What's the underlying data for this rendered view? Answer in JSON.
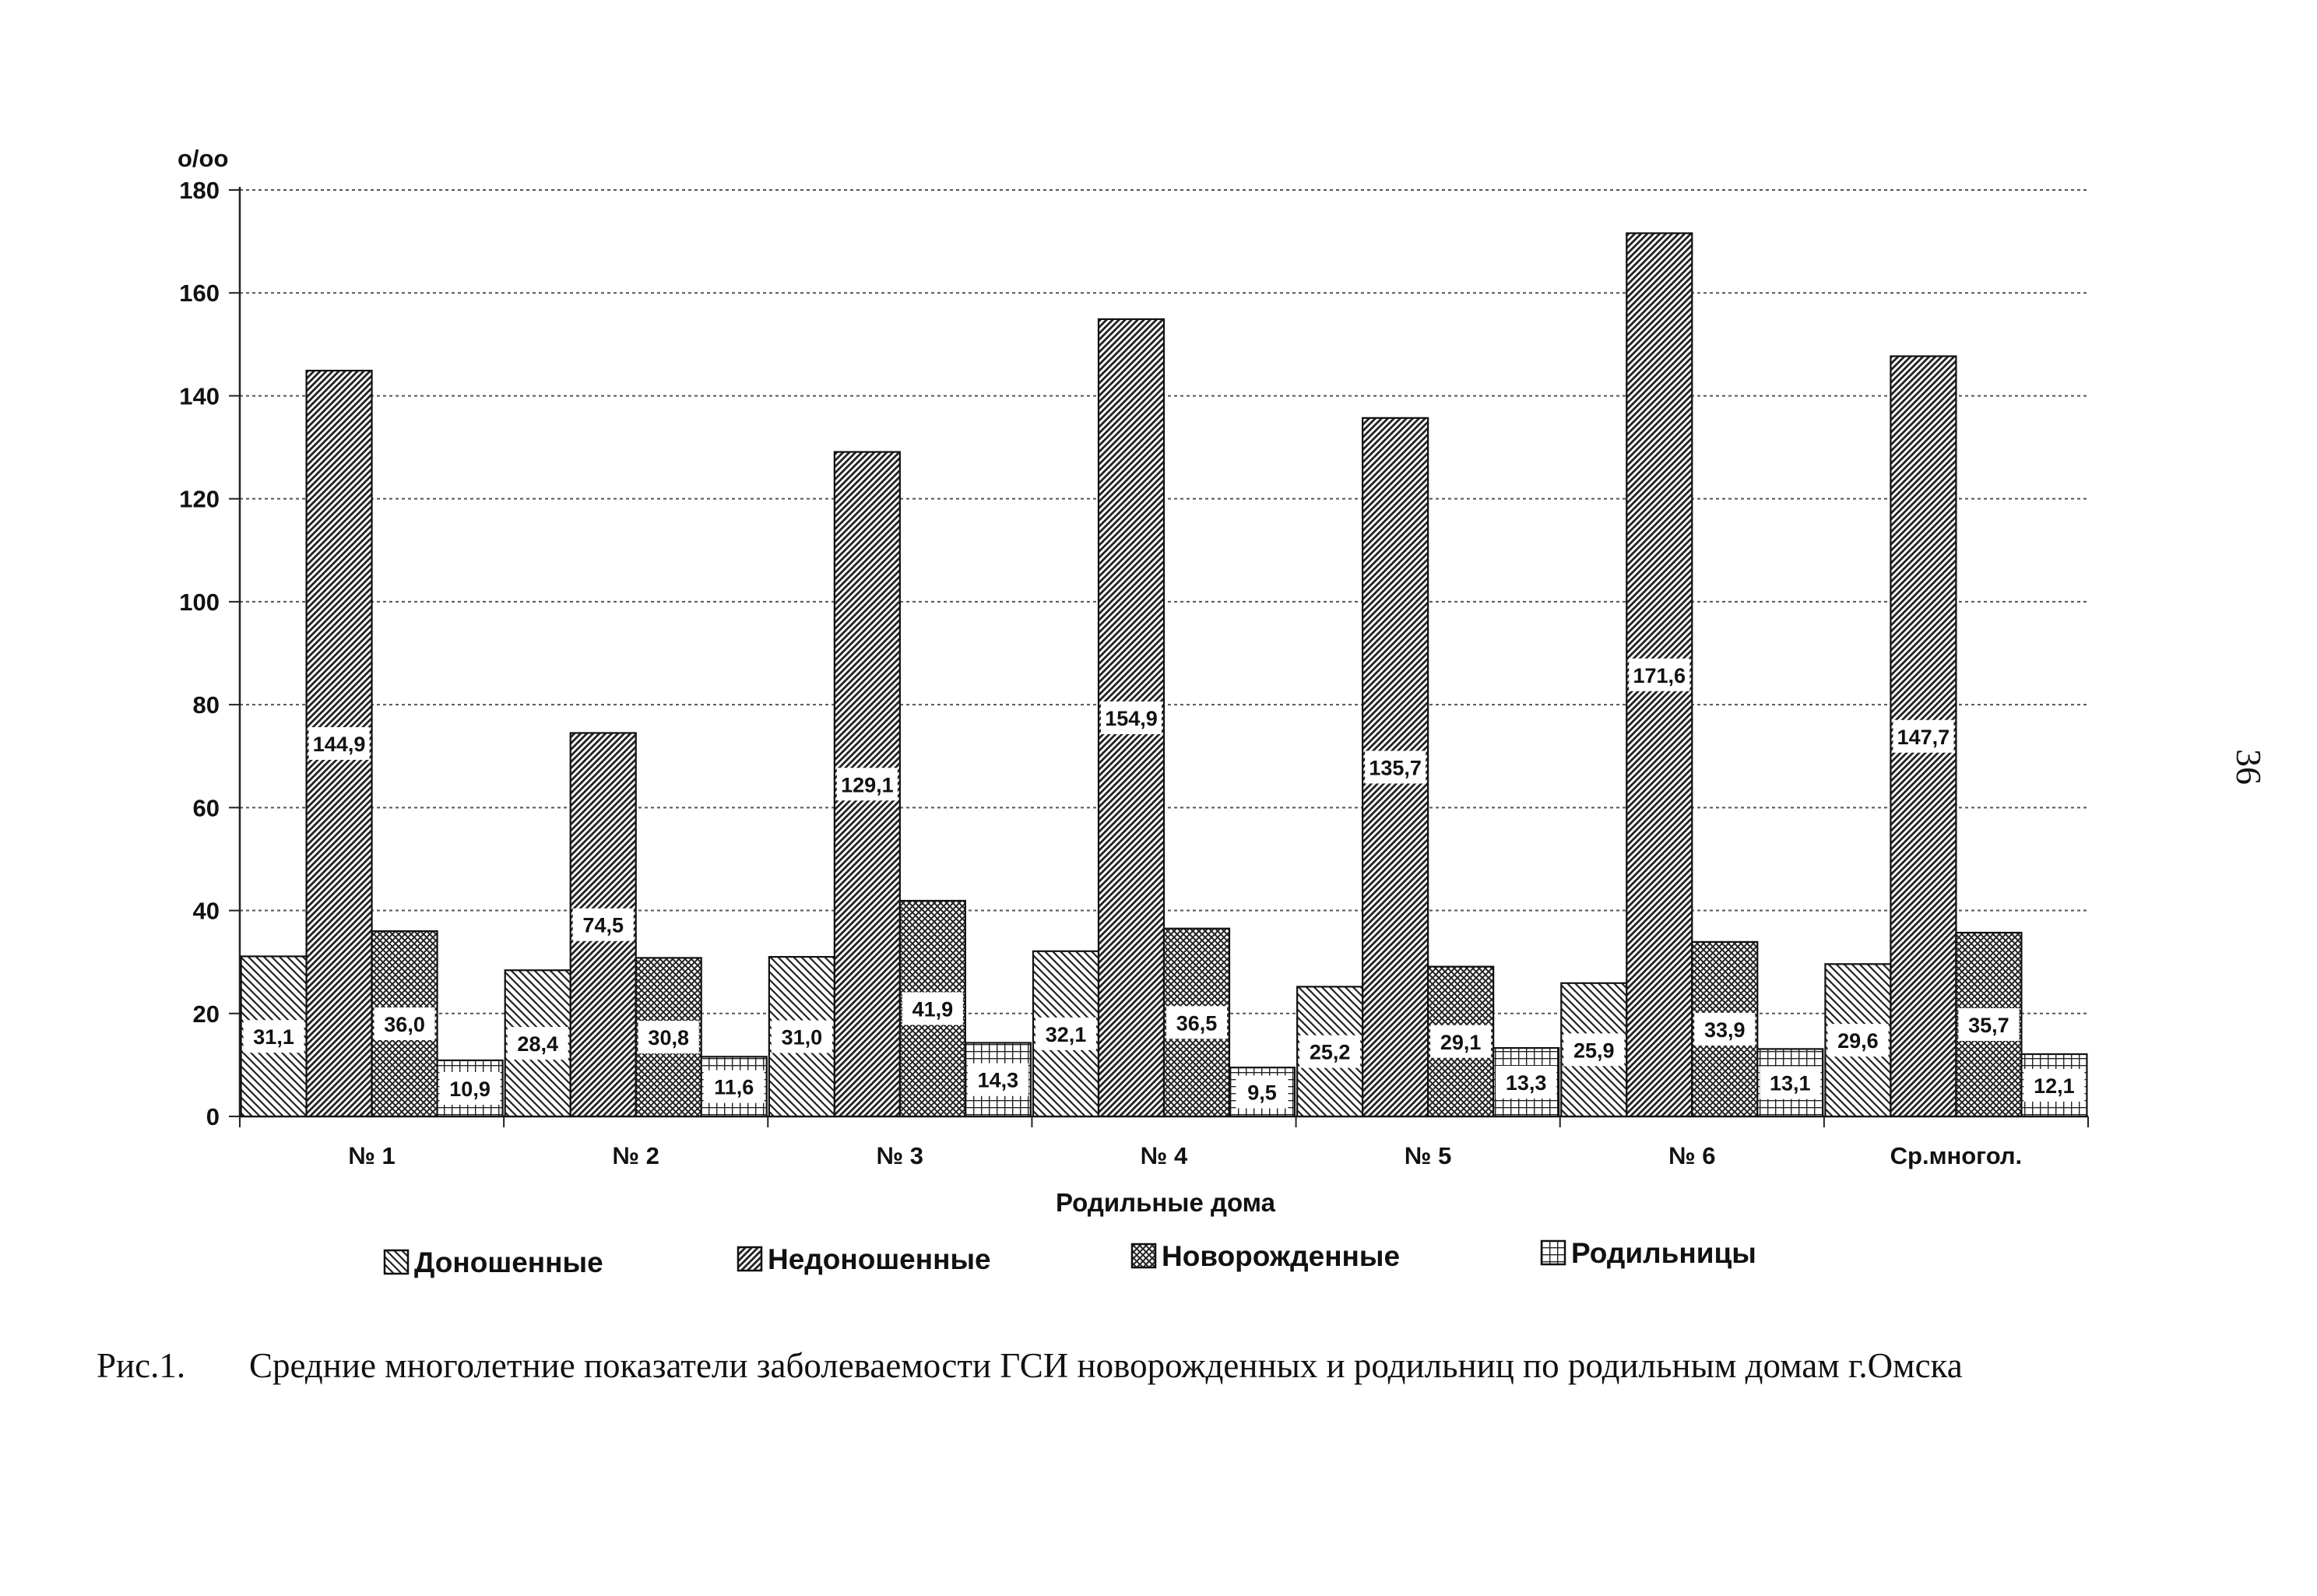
{
  "chart_data": {
    "type": "bar",
    "title": "",
    "ylabel": "о/оо",
    "xlabel": "Родильные дома",
    "ylim": [
      0,
      180
    ],
    "yticks": [
      0,
      20,
      40,
      60,
      80,
      100,
      120,
      140,
      160,
      180
    ],
    "grid": true,
    "legend_position": "bottom",
    "categories": [
      "№ 1",
      "№ 2",
      "№ 3",
      "№ 4",
      "№ 5",
      "№ 6",
      "Ср.многол."
    ],
    "series": [
      {
        "name": "Доношенные",
        "pattern": "diagonal-back",
        "values": [
          31.1,
          28.4,
          31.0,
          32.1,
          25.2,
          25.9,
          29.6
        ],
        "labels": [
          "31,1",
          "28,4",
          "31,0",
          "32,1",
          "25,2",
          "25,9",
          "29,6"
        ]
      },
      {
        "name": "Недоношенные",
        "pattern": "diagonal-dense",
        "values": [
          144.9,
          74.5,
          129.1,
          154.9,
          135.7,
          171.6,
          147.7
        ],
        "labels": [
          "144,9",
          "74,5",
          "129,1",
          "154,9",
          "135,7",
          "171,6",
          "147,7"
        ]
      },
      {
        "name": "Новорожденные",
        "pattern": "crosshatch",
        "values": [
          36.0,
          30.8,
          41.9,
          36.5,
          29.1,
          33.9,
          35.7
        ],
        "labels": [
          "36,0",
          "30,8",
          "41,9",
          "36,5",
          "29,1",
          "33,9",
          "35,7"
        ]
      },
      {
        "name": "Родильницы",
        "pattern": "grid",
        "values": [
          10.9,
          11.6,
          14.3,
          9.5,
          13.3,
          13.1,
          12.1
        ],
        "labels": [
          "10,9",
          "11,6",
          "14,3",
          "9,5",
          "13,3",
          "13,1",
          "12,1"
        ]
      }
    ]
  },
  "caption": {
    "number": "Рис.1.",
    "text": "Средние многолетние показатели заболеваемости ГСИ новорожденных и родильниц по родильным домам г.Омска"
  },
  "page_number": "36"
}
